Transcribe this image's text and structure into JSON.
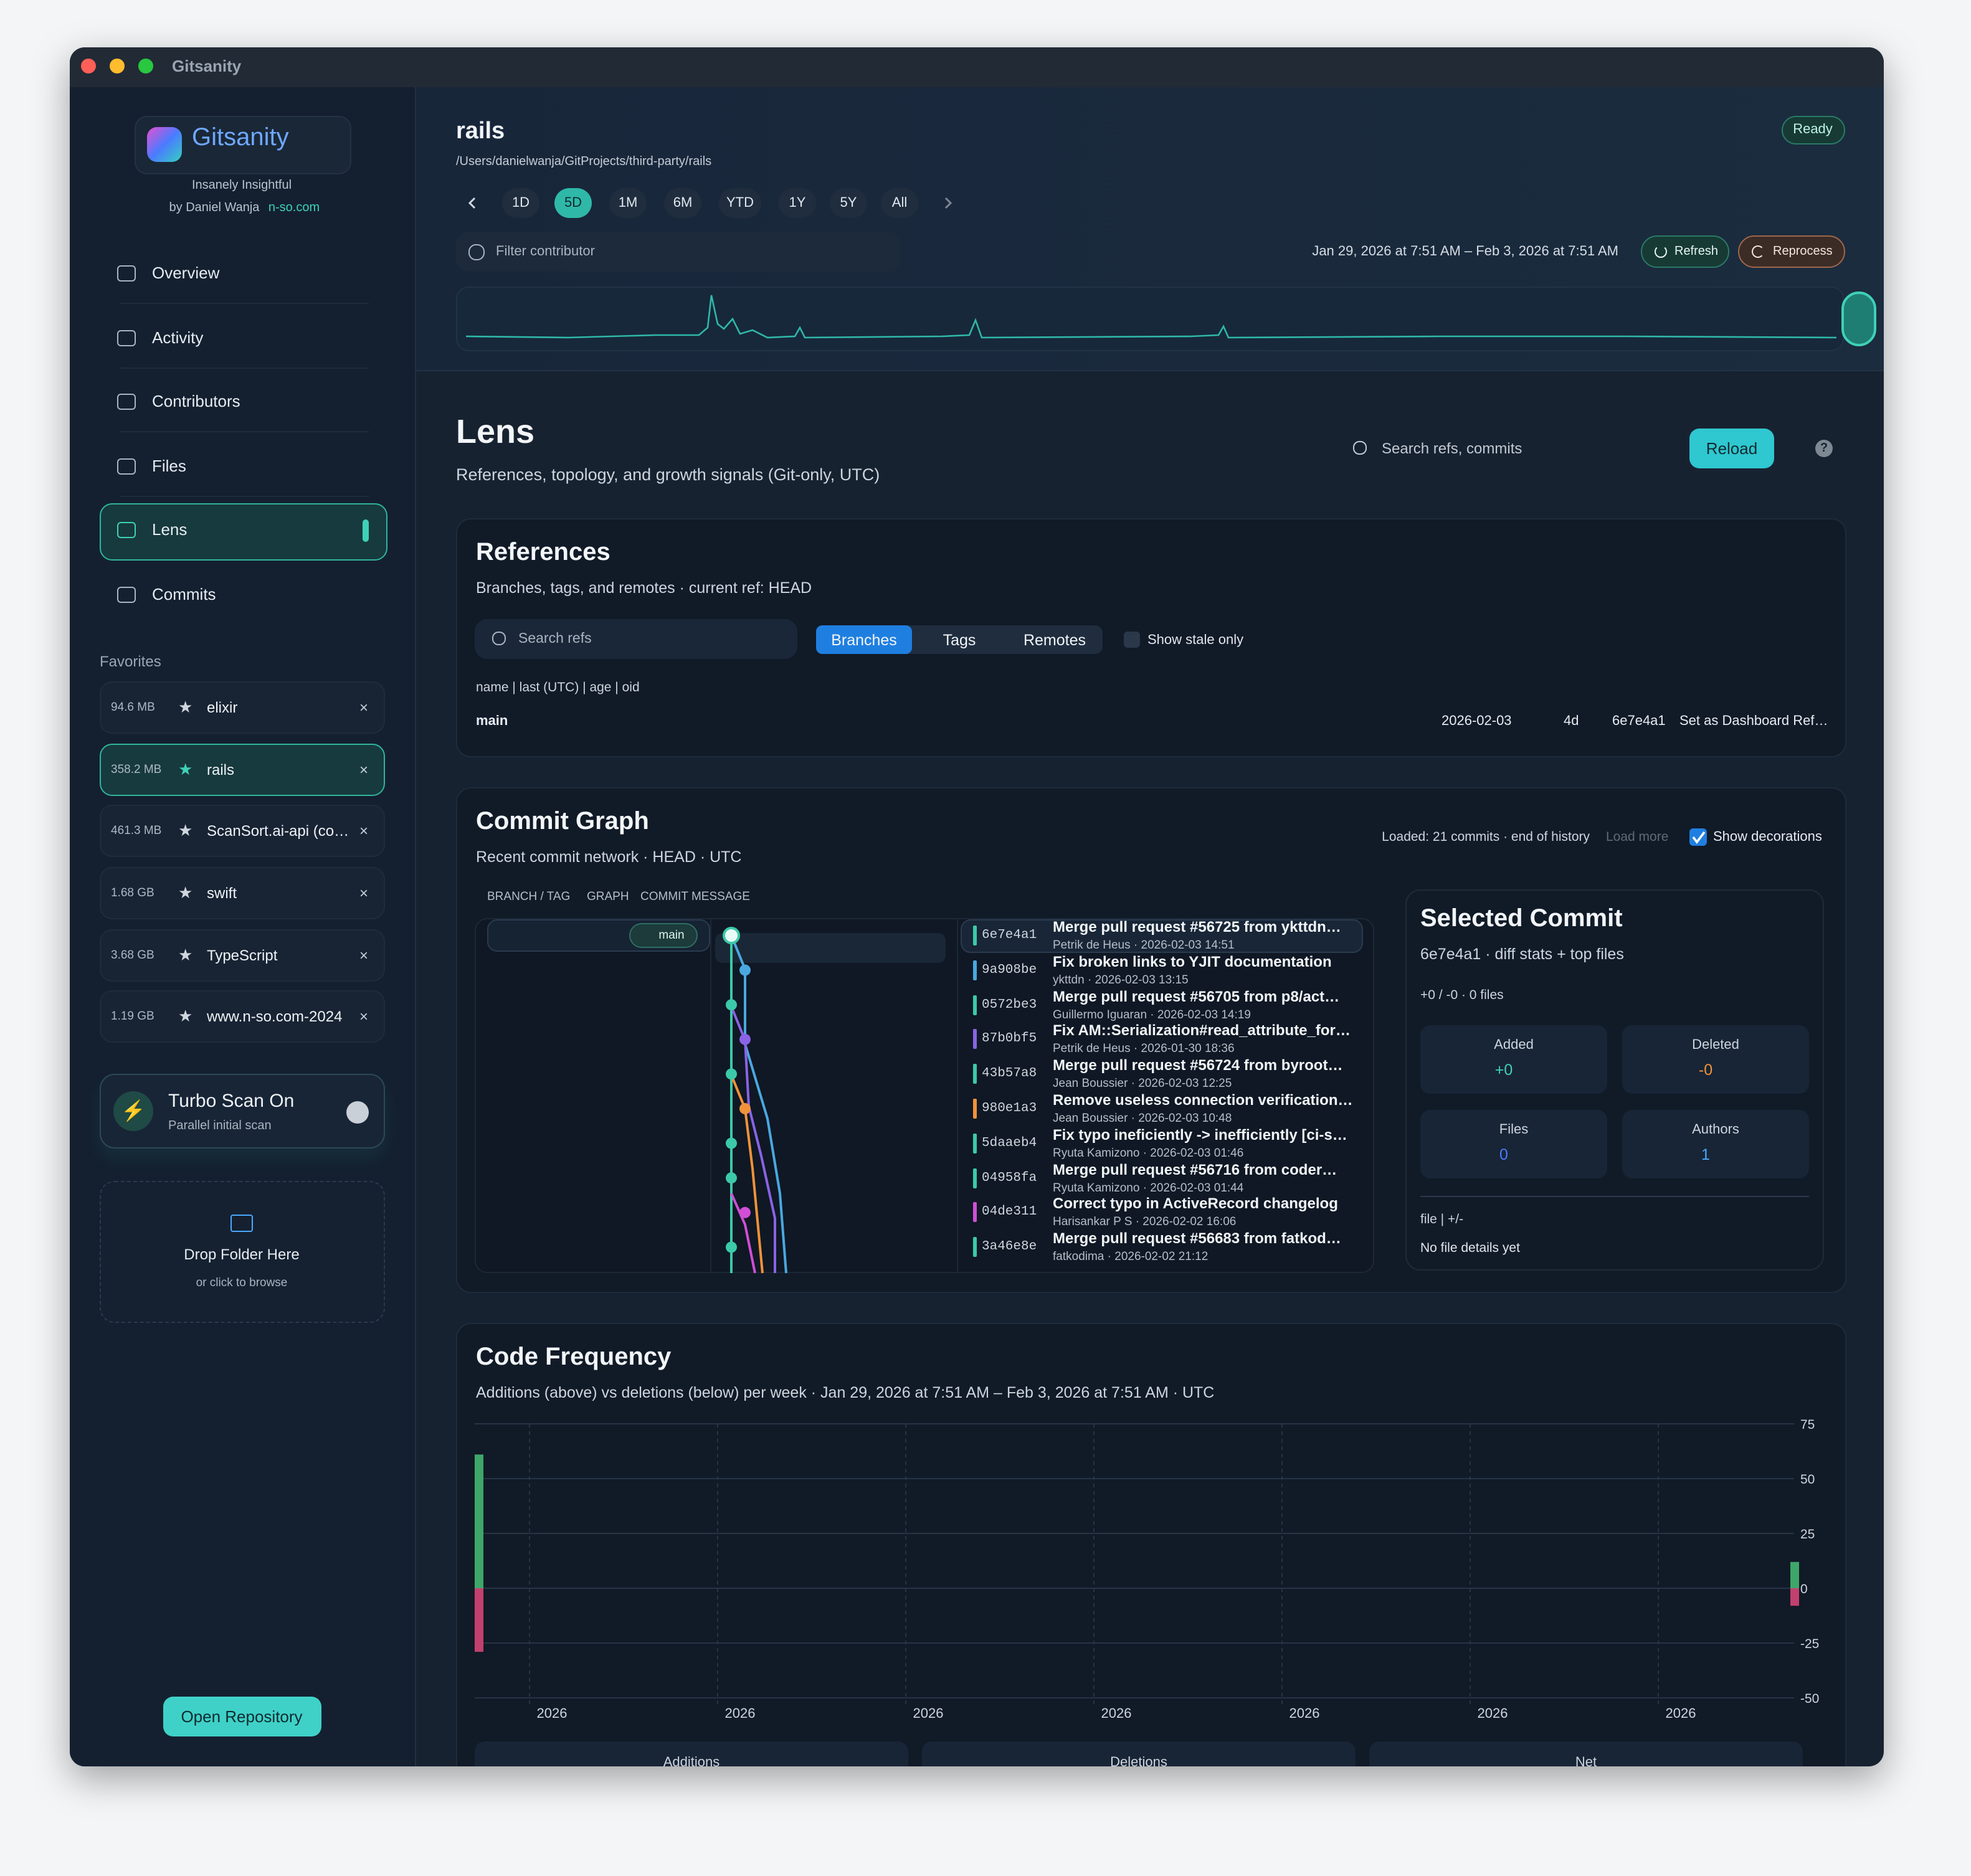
{
  "window": {
    "title": "Gitsanity"
  },
  "sidebar": {
    "app_name": "Gitsanity",
    "tagline": "Insanely Insightful",
    "author": "by Daniel Wanja",
    "site": "n-so.com",
    "nav": [
      "Overview",
      "Activity",
      "Contributors",
      "Files",
      "Lens",
      "Commits"
    ],
    "favorites_label": "Favorites",
    "favorites": [
      {
        "size": "94.6 MB",
        "name": "elixir"
      },
      {
        "size": "358.2 MB",
        "name": "rails"
      },
      {
        "size": "461.3 MB",
        "name": "ScanSort.ai-api (co…"
      },
      {
        "size": "1.68 GB",
        "name": "swift"
      },
      {
        "size": "3.68 GB",
        "name": "TypeScript"
      },
      {
        "size": "1.19 GB",
        "name": "www.n-so.com-2024"
      }
    ],
    "turbo": {
      "title": "Turbo Scan On",
      "subtitle": "Parallel initial scan"
    },
    "drop": {
      "title": "Drop Folder Here",
      "subtitle": "or click to browse"
    },
    "open_button": "Open Repository"
  },
  "header": {
    "repo": "rails",
    "path": "/Users/danielwanja/GitProjects/third-party/rails",
    "status": "Ready",
    "ranges": [
      "1D",
      "5D",
      "1M",
      "6M",
      "YTD",
      "1Y",
      "5Y",
      "All"
    ],
    "filter_placeholder": "Filter contributor",
    "date_range": "Jan 29, 2026 at 7:51 AM – Feb 3, 2026 at 7:51 AM",
    "refresh": "Refresh",
    "reprocess": "Reprocess"
  },
  "lens": {
    "title": "Lens",
    "subtitle": "References, topology, and growth signals (Git-only, UTC)",
    "search_placeholder": "Search refs, commits",
    "reload": "Reload",
    "help": "?"
  },
  "references": {
    "title": "References",
    "subtitle": "Branches, tags, and remotes · current ref: HEAD",
    "search_placeholder": "Search refs",
    "tabs": [
      "Branches",
      "Tags",
      "Remotes"
    ],
    "stale": "Show stale only",
    "columns": "name | last (UTC) | age | oid",
    "rows": [
      [
        "main",
        "2026-02-03",
        "4d",
        "6e7e4a1",
        "Set as Dashboard Ref…"
      ]
    ]
  },
  "commit_graph": {
    "title": "Commit Graph",
    "subtitle": "Recent commit network · HEAD · UTC",
    "loaded": "Loaded: 21 commits · end of history",
    "load_more": "Load more",
    "decorations": "Show decorations",
    "columns": [
      "BRANCH / TAG",
      "GRAPH",
      "COMMIT MESSAGE"
    ],
    "branch_label": "main",
    "commits": [
      {
        "sha": "6e7e4a1",
        "message": "Merge pull request #56725 from ykttdn…",
        "meta": "Petrik de Heus · 2026-02-03 14:51"
      },
      {
        "sha": "9a908be",
        "message": "Fix broken links to YJIT documentation",
        "meta": "ykttdn · 2026-02-03 13:15"
      },
      {
        "sha": "0572be3",
        "message": "Merge pull request #56705 from p8/act…",
        "meta": "Guillermo Iguaran · 2026-02-03 14:19"
      },
      {
        "sha": "87b0bf5",
        "message": "Fix AM::Serialization#read_attribute_for…",
        "meta": "Petrik de Heus · 2026-01-30 18:36"
      },
      {
        "sha": "43b57a8",
        "message": "Merge pull request #56724 from byroot…",
        "meta": "Jean Boussier · 2026-02-03 12:25"
      },
      {
        "sha": "980e1a3",
        "message": "Remove useless connection verification…",
        "meta": "Jean Boussier · 2026-02-03 10:48"
      },
      {
        "sha": "5daaeb4",
        "message": "Fix typo ineficiently -> inefficiently [ci-s…",
        "meta": "Ryuta Kamizono · 2026-02-03 01:46"
      },
      {
        "sha": "04958fa",
        "message": "Merge pull request #56716 from coder…",
        "meta": "Ryuta Kamizono · 2026-02-03 01:44"
      },
      {
        "sha": "04de311",
        "message": "Correct typo in ActiveRecord changelog",
        "meta": "Harisankar P S · 2026-02-02 16:06"
      },
      {
        "sha": "3a46e8e",
        "message": "Merge pull request #56683 from fatkod…",
        "meta": "fatkodima · 2026-02-02 21:12"
      }
    ]
  },
  "selected_commit": {
    "title": "Selected Commit",
    "subtitle": "6e7e4a1 · diff stats + top files",
    "summary": "+0 / -0 · 0 files",
    "stats": [
      {
        "label": "Added",
        "value": "+0"
      },
      {
        "label": "Deleted",
        "value": "-0"
      },
      {
        "label": "Files",
        "value": "0"
      },
      {
        "label": "Authors",
        "value": "1"
      }
    ],
    "files_header": "file | +/-",
    "files_empty": "No file details yet"
  },
  "chart_data": {
    "type": "bar",
    "title": "Code Frequency",
    "subtitle": "Additions (above) vs deletions (below) per week · Jan 29, 2026 at 7:51 AM – Feb 3, 2026 at 7:51 AM · UTC",
    "categories": [
      null,
      null
    ],
    "series": [
      {
        "name": "Additions",
        "color": "#3fa66a",
        "values": [
          61,
          12
        ]
      },
      {
        "name": "Deletions",
        "color": "#c2406e",
        "values": [
          -29,
          -8
        ]
      }
    ],
    "net_label": "Net",
    "xtick_labels": [
      "2026",
      "2026",
      "2026",
      "2026",
      "2026",
      "2026",
      "2026"
    ],
    "ylim": [
      -50,
      75
    ],
    "yticks": [
      75,
      50,
      25,
      0,
      -25,
      -50
    ],
    "grid": true
  }
}
